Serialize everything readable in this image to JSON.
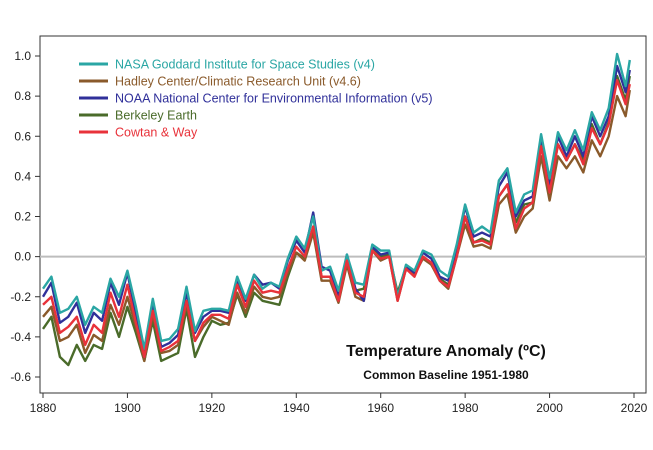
{
  "chart_data": {
    "type": "line",
    "title": "",
    "xlabel": "",
    "ylabel": "",
    "xlim": [
      1880,
      2020
    ],
    "ylim": [
      -0.7,
      1.07
    ],
    "xticks": [
      "1880",
      "1900",
      "1920",
      "1940",
      "1960",
      "1980",
      "2000",
      "2020"
    ],
    "yticks": [
      "1.0",
      "0.8",
      "0.6",
      "0.4",
      "0.2",
      "0.0",
      "-0.2",
      "-0.4",
      "-0.6"
    ],
    "zero_line": true,
    "grid": false,
    "legend_position": "top-left",
    "annotations": [
      {
        "text": "Temperature Anomaly (ºC)",
        "style": "title"
      },
      {
        "text": "Common Baseline 1951-1980",
        "style": "subtitle"
      }
    ],
    "x": [
      1880,
      1882,
      1884,
      1886,
      1888,
      1890,
      1892,
      1894,
      1896,
      1898,
      1900,
      1902,
      1904,
      1906,
      1908,
      1910,
      1912,
      1914,
      1916,
      1918,
      1920,
      1922,
      1924,
      1926,
      1928,
      1930,
      1932,
      1934,
      1936,
      1938,
      1940,
      1942,
      1944,
      1946,
      1948,
      1950,
      1952,
      1954,
      1956,
      1958,
      1960,
      1962,
      1964,
      1966,
      1968,
      1970,
      1972,
      1974,
      1976,
      1978,
      1980,
      1982,
      1984,
      1986,
      1988,
      1990,
      1992,
      1994,
      1996,
      1998,
      2000,
      2002,
      2004,
      2006,
      2008,
      2010,
      2012,
      2014,
      2016,
      2018,
      2019
    ],
    "series": [
      {
        "name": "NASA Goddard Institute for Space Studies (v4)",
        "color": "#2aa6a4",
        "values": [
          -0.16,
          -0.1,
          -0.28,
          -0.26,
          -0.2,
          -0.34,
          -0.25,
          -0.28,
          -0.11,
          -0.2,
          -0.07,
          -0.25,
          -0.46,
          -0.21,
          -0.42,
          -0.41,
          -0.36,
          -0.15,
          -0.37,
          -0.27,
          -0.26,
          -0.26,
          -0.27,
          -0.1,
          -0.21,
          -0.09,
          -0.16,
          -0.13,
          -0.15,
          -0.01,
          0.1,
          0.04,
          0.2,
          -0.07,
          -0.05,
          -0.17,
          0.01,
          -0.13,
          -0.14,
          0.06,
          0.03,
          0.03,
          -0.2,
          -0.04,
          -0.07,
          0.03,
          0.01,
          -0.07,
          -0.1,
          0.06,
          0.26,
          0.12,
          0.15,
          0.12,
          0.38,
          0.44,
          0.22,
          0.31,
          0.33,
          0.61,
          0.39,
          0.62,
          0.53,
          0.63,
          0.53,
          0.72,
          0.63,
          0.74,
          1.01,
          0.85,
          0.98
        ]
      },
      {
        "name": "Hadley Center/Climatic Research Unit (v4.6)",
        "color": "#8a5a2b",
        "values": [
          -0.3,
          -0.25,
          -0.42,
          -0.4,
          -0.34,
          -0.48,
          -0.39,
          -0.42,
          -0.24,
          -0.34,
          -0.2,
          -0.35,
          -0.52,
          -0.29,
          -0.48,
          -0.47,
          -0.44,
          -0.24,
          -0.42,
          -0.35,
          -0.3,
          -0.32,
          -0.34,
          -0.18,
          -0.28,
          -0.15,
          -0.2,
          -0.21,
          -0.2,
          -0.08,
          0.02,
          -0.02,
          0.12,
          -0.12,
          -0.12,
          -0.23,
          -0.04,
          -0.2,
          -0.22,
          0.03,
          -0.02,
          0.0,
          -0.22,
          -0.06,
          -0.09,
          -0.01,
          -0.04,
          -0.12,
          -0.16,
          0.0,
          0.16,
          0.05,
          0.06,
          0.04,
          0.26,
          0.31,
          0.12,
          0.2,
          0.24,
          0.5,
          0.28,
          0.5,
          0.44,
          0.5,
          0.42,
          0.58,
          0.5,
          0.6,
          0.8,
          0.7,
          0.83
        ]
      },
      {
        "name": "NOAA National Center for Environmental Information (v5)",
        "color": "#30309a",
        "values": [
          -0.2,
          -0.13,
          -0.33,
          -0.3,
          -0.23,
          -0.38,
          -0.28,
          -0.32,
          -0.13,
          -0.24,
          -0.08,
          -0.29,
          -0.5,
          -0.24,
          -0.45,
          -0.43,
          -0.39,
          -0.18,
          -0.38,
          -0.3,
          -0.27,
          -0.27,
          -0.28,
          -0.12,
          -0.22,
          -0.09,
          -0.14,
          -0.13,
          -0.16,
          -0.02,
          0.08,
          0.02,
          0.22,
          -0.05,
          -0.07,
          -0.2,
          0.01,
          -0.16,
          -0.22,
          0.05,
          0.01,
          0.02,
          -0.2,
          -0.05,
          -0.08,
          0.02,
          -0.01,
          -0.1,
          -0.12,
          0.04,
          0.25,
          0.1,
          0.12,
          0.1,
          0.35,
          0.42,
          0.2,
          0.28,
          0.3,
          0.6,
          0.36,
          0.6,
          0.5,
          0.6,
          0.5,
          0.7,
          0.6,
          0.7,
          0.95,
          0.82,
          0.93
        ]
      },
      {
        "name": "Berkeley Earth",
        "color": "#4a6b2a",
        "values": [
          -0.36,
          -0.3,
          -0.5,
          -0.54,
          -0.44,
          -0.52,
          -0.44,
          -0.46,
          -0.28,
          -0.4,
          -0.25,
          -0.38,
          -0.52,
          -0.32,
          -0.52,
          -0.5,
          -0.48,
          -0.26,
          -0.5,
          -0.4,
          -0.32,
          -0.34,
          -0.33,
          -0.19,
          -0.3,
          -0.18,
          -0.22,
          -0.23,
          -0.24,
          -0.1,
          0.02,
          -0.01,
          0.13,
          -0.1,
          -0.1,
          -0.2,
          -0.02,
          -0.17,
          -0.16,
          0.04,
          0.0,
          0.01,
          -0.18,
          -0.05,
          -0.08,
          0.0,
          -0.04,
          -0.11,
          -0.14,
          0.02,
          0.2,
          0.07,
          0.09,
          0.07,
          0.3,
          0.36,
          0.17,
          0.26,
          0.27,
          0.56,
          0.34,
          0.56,
          0.48,
          0.56,
          0.48,
          0.66,
          0.56,
          0.67,
          0.9,
          0.78,
          0.9
        ]
      },
      {
        "name": "Cowtan & Way",
        "color": "#e8323a",
        "values": [
          -0.24,
          -0.2,
          -0.38,
          -0.35,
          -0.3,
          -0.44,
          -0.34,
          -0.38,
          -0.18,
          -0.3,
          -0.14,
          -0.33,
          -0.5,
          -0.27,
          -0.47,
          -0.45,
          -0.42,
          -0.22,
          -0.42,
          -0.33,
          -0.29,
          -0.29,
          -0.31,
          -0.14,
          -0.25,
          -0.12,
          -0.18,
          -0.17,
          -0.18,
          -0.06,
          0.05,
          0.0,
          0.15,
          -0.1,
          -0.1,
          -0.22,
          -0.02,
          -0.18,
          -0.2,
          0.03,
          -0.01,
          0.0,
          -0.22,
          -0.06,
          -0.1,
          0.0,
          -0.03,
          -0.12,
          -0.15,
          0.0,
          0.2,
          0.07,
          0.08,
          0.06,
          0.3,
          0.36,
          0.14,
          0.24,
          0.27,
          0.55,
          0.32,
          0.56,
          0.48,
          0.56,
          0.46,
          0.64,
          0.56,
          0.66,
          0.88,
          0.76,
          0.86
        ]
      }
    ]
  }
}
